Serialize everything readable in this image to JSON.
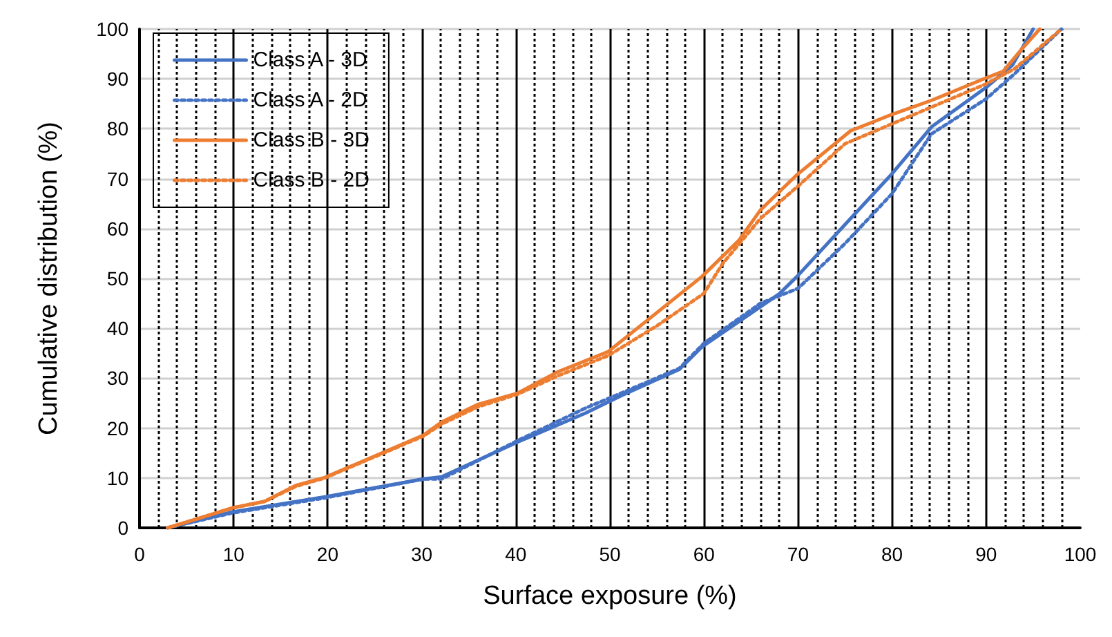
{
  "chart_data": {
    "type": "line",
    "xlabel": "Surface exposure (%)",
    "ylabel": "Cumulative distribution (%)",
    "xlim": [
      0,
      100
    ],
    "ylim": [
      0,
      100
    ],
    "xticks": [
      0,
      {
        "value": 2,
        "label": null
      },
      {
        "value": 4,
        "label": null
      },
      {
        "value": 6,
        "label": null
      },
      {
        "value": 8,
        "label": null
      },
      10,
      {
        "value": 12,
        "label": null
      },
      {
        "value": 14,
        "label": null
      },
      {
        "value": 16,
        "label": null
      },
      {
        "value": 18,
        "label": null
      },
      20,
      {
        "value": 22,
        "label": null
      },
      {
        "value": 24,
        "label": null
      },
      {
        "value": 26,
        "label": null
      },
      {
        "value": 28,
        "label": null
      },
      30,
      {
        "value": 32,
        "label": null
      },
      {
        "value": 34,
        "label": null
      },
      {
        "value": 36,
        "label": null
      },
      {
        "value": 38,
        "label": null
      },
      40,
      {
        "value": 42,
        "label": null
      },
      {
        "value": 44,
        "label": null
      },
      {
        "value": 46,
        "label": null
      },
      {
        "value": 48,
        "label": null
      },
      50,
      {
        "value": 52,
        "label": null
      },
      {
        "value": 54,
        "label": null
      },
      {
        "value": 56,
        "label": null
      },
      {
        "value": 58,
        "label": null
      },
      60,
      {
        "value": 62,
        "label": null
      },
      {
        "value": 64,
        "label": null
      },
      {
        "value": 66,
        "label": null
      },
      {
        "value": 68,
        "label": null
      },
      70,
      {
        "value": 72,
        "label": null
      },
      {
        "value": 74,
        "label": null
      },
      {
        "value": 76,
        "label": null
      },
      {
        "value": 78,
        "label": null
      },
      80,
      {
        "value": 82,
        "label": null
      },
      {
        "value": 84,
        "label": null
      },
      {
        "value": 86,
        "label": null
      },
      {
        "value": 88,
        "label": null
      },
      90,
      {
        "value": 92,
        "label": null
      },
      {
        "value": 94,
        "label": null
      },
      {
        "value": 96,
        "label": null
      },
      {
        "value": 98,
        "label": null
      },
      100
    ],
    "yticks": [
      0,
      10,
      20,
      30,
      40,
      50,
      60,
      70,
      80,
      90,
      100
    ],
    "grid": true,
    "legend": "top left",
    "marker": "none",
    "series": [
      {
        "name": "Class A - 3D",
        "color": "#4472c4",
        "line_style": "solid",
        "x": [
          3,
          9.9,
          19.7,
          30.2,
          32.1,
          40.2,
          47.4,
          51.2,
          57.4,
          59.8,
          68,
          69.9,
          79.9,
          84.2,
          90,
          92.8,
          95
        ],
        "values": [
          0,
          3.2,
          6.2,
          9.8,
          10.2,
          17.2,
          23,
          26.5,
          31.8,
          36.3,
          46.9,
          50.4,
          70.8,
          80.4,
          88.3,
          92.8,
          100
        ]
      },
      {
        "name": "Class A - 2D",
        "color": "#4472c4",
        "line_style": "dotted",
        "x": [
          3,
          9.9,
          19.7,
          30.2,
          32.1,
          40.2,
          47.4,
          51.2,
          57.4,
          60,
          66,
          70,
          75,
          80,
          84.2,
          90,
          93,
          98
        ],
        "values": [
          0,
          3,
          6,
          9.8,
          9.8,
          17.5,
          24,
          27,
          32,
          37,
          45,
          48,
          57,
          67,
          79,
          86,
          91,
          100
        ]
      },
      {
        "name": "Class B - 3D",
        "color": "#ed7d31",
        "line_style": "solid",
        "x": [
          3,
          9.9,
          13.3,
          16.6,
          19.7,
          30.2,
          32.1,
          35.9,
          40.2,
          44.5,
          49.8,
          59.8,
          63.7,
          66,
          69.9,
          75.6,
          79.9,
          84.2,
          90,
          91.8,
          93.8,
          95.7
        ],
        "values": [
          0,
          4,
          5.3,
          8.5,
          10.1,
          18.6,
          21.2,
          24.7,
          27,
          31.3,
          35.3,
          50.4,
          57.6,
          63.7,
          70.8,
          79.6,
          82.8,
          85.7,
          90.2,
          91.5,
          96,
          100
        ]
      },
      {
        "name": "Class B - 2D",
        "color": "#ed7d31",
        "line_style": "dotted",
        "x": [
          3,
          9.9,
          13.3,
          16.6,
          19.7,
          30.2,
          32.1,
          35.9,
          40.2,
          44.5,
          49.8,
          55,
          60,
          62,
          66,
          70,
          75,
          80,
          85,
          90,
          93,
          98
        ],
        "values": [
          0,
          4,
          5.3,
          8.3,
          10,
          18.4,
          20.8,
          24.2,
          26.8,
          30.5,
          34.5,
          40.5,
          47,
          53,
          62,
          68.5,
          77,
          81,
          85,
          89,
          92,
          100
        ]
      }
    ]
  }
}
